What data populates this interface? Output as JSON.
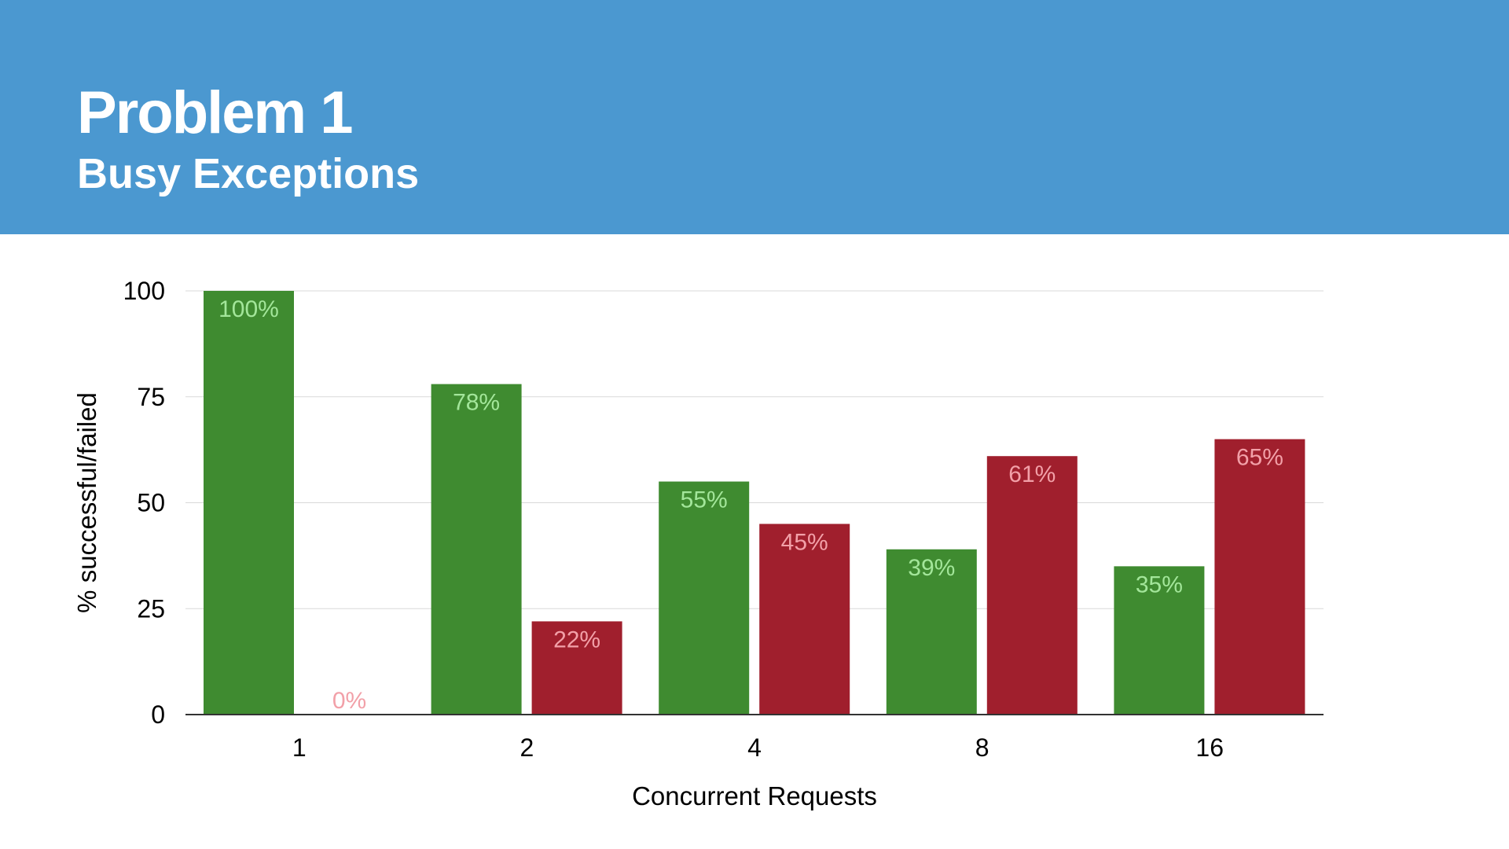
{
  "header": {
    "title": "Problem 1",
    "subtitle": "Busy Exceptions"
  },
  "colors": {
    "header_bg": "#4b98d0",
    "successful": "#3f8b30",
    "failed": "#a01f2d",
    "successful_label": "#a3e69a",
    "failed_label": "#f2a0a8",
    "gridline": "#d9d9d9"
  },
  "chart_data": {
    "type": "bar",
    "categories": [
      "1",
      "2",
      "4",
      "8",
      "16"
    ],
    "series": [
      {
        "values": [
          100,
          78,
          55,
          39,
          35
        ],
        "labels": [
          "100%",
          "78%",
          "55%",
          "39%",
          "35%"
        ]
      },
      {
        "values": [
          0,
          22,
          45,
          61,
          65
        ],
        "labels": [
          "0%",
          "22%",
          "45%",
          "61%",
          "65%"
        ]
      }
    ],
    "xlabel": "Concurrent Requests",
    "ylabel": "% successful/failed",
    "ylim": [
      0,
      100
    ],
    "yticks": [
      0,
      25,
      50,
      75,
      100
    ],
    "grid": true,
    "legend": "none"
  }
}
